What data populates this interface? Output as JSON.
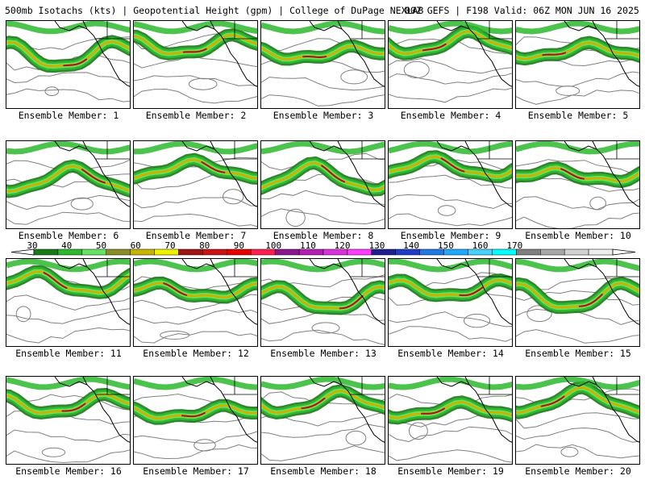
{
  "header": {
    "product": "500mb Isotachs (kts) | Geopotential Height (gpm) | College of DuPage NEXLAB",
    "run": "00Z GEFS | F198 Valid: 06Z MON JUN 16 2025"
  },
  "member_label_prefix": "Ensemble Member: ",
  "members": [
    {
      "label": "Ensemble Member: 1",
      "jet": 0
    },
    {
      "label": "Ensemble Member: 2",
      "jet": 1
    },
    {
      "label": "Ensemble Member: 3",
      "jet": 2
    },
    {
      "label": "Ensemble Member: 4",
      "jet": 3
    },
    {
      "label": "Ensemble Member: 5",
      "jet": 4
    },
    {
      "label": "Ensemble Member: 6",
      "jet": 5
    },
    {
      "label": "Ensemble Member: 7",
      "jet": 6
    },
    {
      "label": "Ensemble Member: 8",
      "jet": 7
    },
    {
      "label": "Ensemble Member: 9",
      "jet": 8
    },
    {
      "label": "Ensemble Member: 10",
      "jet": 9
    },
    {
      "label": "Ensemble Member: 11",
      "jet": 10
    },
    {
      "label": "Ensemble Member: 12",
      "jet": 11
    },
    {
      "label": "Ensemble Member: 13",
      "jet": 12
    },
    {
      "label": "Ensemble Member: 14",
      "jet": 13
    },
    {
      "label": "Ensemble Member: 15",
      "jet": 14
    },
    {
      "label": "Ensemble Member: 16",
      "jet": 15
    },
    {
      "label": "Ensemble Member: 17",
      "jet": 16
    },
    {
      "label": "Ensemble Member: 18",
      "jet": 17
    },
    {
      "label": "Ensemble Member: 19",
      "jet": 18
    },
    {
      "label": "Ensemble Member: 20",
      "jet": 19
    }
  ],
  "colorbar": {
    "labels": [
      "30",
      "40",
      "50",
      "60",
      "70",
      "80",
      "90",
      "100",
      "110",
      "120",
      "130",
      "140",
      "150",
      "160",
      "170"
    ],
    "colors": [
      "#1a7a1a",
      "#2db82d",
      "#66e266",
      "#8c8c28",
      "#c8b400",
      "#f0f000",
      "#a01414",
      "#c81414",
      "#e60000",
      "#ff1e50",
      "#8c148c",
      "#b41eb4",
      "#dc32dc",
      "#ff3cff",
      "#1e1e8c",
      "#1e3cc8",
      "#1e78e6",
      "#1eaaff",
      "#46d2ff",
      "#00ffff",
      "#808080",
      "#a8a8a8",
      "#d2d2d2",
      "#eeeeee"
    ]
  },
  "colors": {
    "jet_core": "#a01414",
    "jet_mid": "#c8b400",
    "jet_edge": "#2db82d",
    "jet_outer": "#1a7a1a",
    "height_contour": "#808080",
    "coastline": "#000000"
  }
}
